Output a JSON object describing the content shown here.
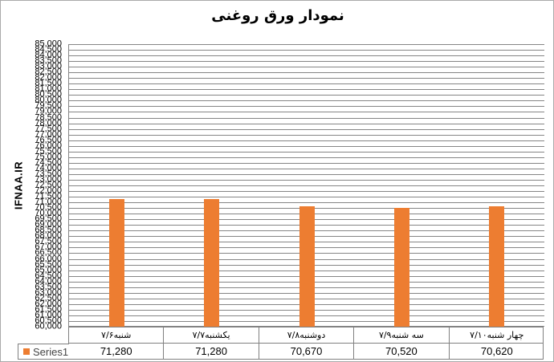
{
  "title": "نمودار ورق روغنی",
  "y_axis_title": "IFNAA.IR",
  "legend": {
    "series_label": "Series1",
    "swatch": "orange-square-icon"
  },
  "colors": {
    "bar": "#ED7D31",
    "gridline": "#858585",
    "table_border": "#808080",
    "outer_border": "#AAAAAA",
    "title_text": "#000000",
    "legend_text": "#444444"
  },
  "chart_data": {
    "type": "bar",
    "title": "نمودار ورق روغنی",
    "xlabel": "",
    "ylabel": "IFNAA.IR",
    "categories": [
      "شنبه۷/۶",
      "یکشنبه۷/۷",
      "دوشنبه۷/۸",
      "سه شنبه۷/۹",
      "چهار شنبه۷/۱۰"
    ],
    "series": [
      {
        "name": "Series1",
        "values": [
          71280,
          71280,
          70670,
          70520,
          70620
        ]
      }
    ],
    "values_formatted": [
      "71,280",
      "71,280",
      "70,670",
      "70,520",
      "70,620"
    ],
    "ylim": [
      60000,
      85000
    ],
    "y_step": 500,
    "y_tick_format": "#,##0",
    "grid": true,
    "legend_position": "data-table-left",
    "has_data_table": true
  }
}
